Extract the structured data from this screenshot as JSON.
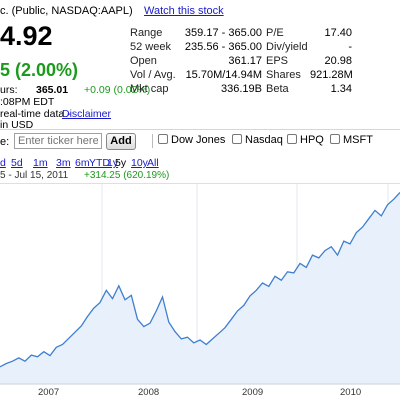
{
  "header": {
    "company_fragment": "c. (Public, NASDAQ:AAPL)",
    "watch_link": "Watch this stock",
    "price": "4.92",
    "change": "5 (2.00%)",
    "after_hours_label": "urs:",
    "after_hours_price": "365.01",
    "after_hours_change": "+0.09 (0.02%)",
    "after_hours_time": ":08PM EDT",
    "realtime_label": "real-time data -",
    "disclaimer": "Disclaimer",
    "currency": "in USD"
  },
  "stats": {
    "left": [
      {
        "label": "Range",
        "value": "359.17 - 365.00"
      },
      {
        "label": "52 week",
        "value": "235.56 - 365.00"
      },
      {
        "label": "Open",
        "value": "361.17"
      },
      {
        "label": "Vol / Avg.",
        "value": "15.70M/14.94M"
      },
      {
        "label": "Mkt cap",
        "value": "336.19B"
      }
    ],
    "right": [
      {
        "label": "P/E",
        "value": "17.40"
      },
      {
        "label": "Div/yield",
        "value": "-"
      },
      {
        "label": "EPS",
        "value": "20.98"
      },
      {
        "label": "Shares",
        "value": "921.28M"
      },
      {
        "label": "Beta",
        "value": "1.34"
      }
    ]
  },
  "compare": {
    "label": "e:",
    "input_placeholder": "Enter ticker here",
    "add_label": "Add",
    "items": [
      "Dow Jones",
      "Nasdaq",
      "HPQ",
      "MSFT"
    ]
  },
  "zoom": {
    "options": [
      "d",
      "5d",
      "1m",
      "3m",
      "6m",
      "YTD",
      "1y",
      "5y",
      "10y",
      "All"
    ],
    "active": "5y"
  },
  "range": {
    "dates": "5 - Jul 15, 2011",
    "change": "+314.25 (620.19%)"
  },
  "chart_data": {
    "type": "area",
    "x_labels": [
      "2007",
      "2008",
      "2009",
      "2010"
    ],
    "y_values": [
      50,
      56,
      60,
      66,
      60,
      71,
      68,
      77,
      70,
      85,
      90,
      101,
      112,
      123,
      140,
      155,
      165,
      187,
      172,
      195,
      170,
      178,
      135,
      122,
      128,
      150,
      175,
      130,
      113,
      100,
      103,
      93,
      98,
      90,
      100,
      110,
      120,
      135,
      150,
      160,
      177,
      187,
      200,
      194,
      212,
      205,
      220,
      218,
      235,
      228,
      250,
      245,
      258,
      265,
      250,
      275,
      270,
      290,
      300,
      315,
      330,
      320,
      340,
      350,
      362
    ],
    "line_color": "#3f7fce",
    "fill_color": "#e8f1fb"
  }
}
